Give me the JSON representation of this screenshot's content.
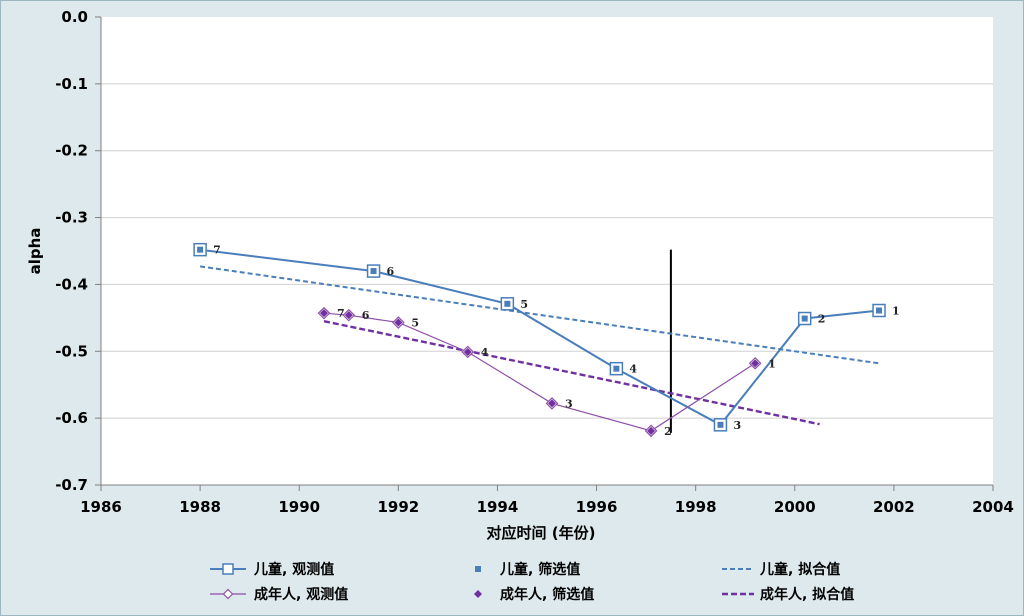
{
  "chart_data": {
    "type": "line",
    "xlabel": "对应时间 (年份)",
    "ylabel": "alpha",
    "xlim": [
      1986,
      2004
    ],
    "ylim": [
      -0.7,
      0.0
    ],
    "xticks": [
      "1986",
      "1988",
      "1990",
      "1992",
      "1994",
      "1996",
      "1998",
      "2000",
      "2002",
      "2004"
    ],
    "yticks": [
      "0.0",
      "-0.1",
      "-0.2",
      "-0.3",
      "-0.4",
      "-0.5",
      "-0.6",
      "-0.7"
    ],
    "grid": "horizontal",
    "legend_position": "bottom",
    "vertical_marker_x": 1997.5,
    "series": [
      {
        "name": "儿童, 观测值",
        "kind": "observed",
        "color": "#4a7ebb",
        "marker": "square-open",
        "x": [
          1988.0,
          1991.5,
          1994.2,
          1996.4,
          1998.5,
          2000.2,
          2001.7
        ],
        "y": [
          -0.348,
          -0.38,
          -0.429,
          -0.526,
          -0.61,
          -0.451,
          -0.439
        ],
        "labels": [
          "7",
          "6",
          "5",
          "4",
          "3",
          "2",
          "1"
        ]
      },
      {
        "name": "儿童, 筛选值",
        "kind": "selected",
        "color": "#4a7ebb",
        "marker": "square",
        "x": [
          1988.0,
          1991.5,
          1994.2,
          1996.4,
          1998.5,
          2000.2,
          2001.7
        ],
        "y": [
          -0.348,
          -0.38,
          -0.429,
          -0.526,
          -0.61,
          -0.451,
          -0.439
        ]
      },
      {
        "name": "儿童, 拟合值",
        "kind": "fitted",
        "color": "#4a7ebb",
        "x": [
          1988.0,
          2001.7
        ],
        "y": [
          -0.373,
          -0.518
        ]
      },
      {
        "name": "成年人, 观测值",
        "kind": "observed",
        "color": "#8e4fa8",
        "marker": "diamond-open",
        "x": [
          1990.5,
          1991.0,
          1992.0,
          1993.4,
          1995.1,
          1997.1,
          1999.2
        ],
        "y": [
          -0.443,
          -0.446,
          -0.457,
          -0.501,
          -0.578,
          -0.619,
          -0.518
        ],
        "labels": [
          "7",
          "6",
          "5",
          "4",
          "3",
          "2",
          "1"
        ]
      },
      {
        "name": "成年人, 筛选值",
        "kind": "selected",
        "color": "#7030a0",
        "marker": "diamond",
        "x": [
          1990.5,
          1991.0,
          1992.0,
          1993.4,
          1995.1,
          1997.1,
          1999.2
        ],
        "y": [
          -0.443,
          -0.446,
          -0.457,
          -0.501,
          -0.578,
          -0.619,
          -0.518
        ]
      },
      {
        "name": "成年人, 拟合值",
        "kind": "fitted",
        "color": "#7030a0",
        "x": [
          1990.5,
          2000.5
        ],
        "y": [
          -0.455,
          -0.609
        ]
      }
    ]
  }
}
